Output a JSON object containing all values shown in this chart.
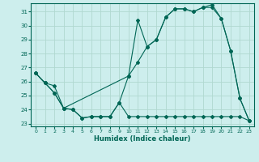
{
  "xlabel": "Humidex (Indice chaleur)",
  "bg_color": "#cdeeed",
  "grid_color": "#b0d8d0",
  "line_color": "#006655",
  "ylim": [
    22.8,
    31.6
  ],
  "xlim": [
    -0.5,
    23.5
  ],
  "yticks": [
    23,
    24,
    25,
    26,
    27,
    28,
    29,
    30,
    31
  ],
  "xticks": [
    0,
    1,
    2,
    3,
    4,
    5,
    6,
    7,
    8,
    9,
    10,
    11,
    12,
    13,
    14,
    15,
    16,
    17,
    18,
    19,
    20,
    21,
    22,
    23
  ],
  "series1_x": [
    0,
    1,
    2,
    3,
    4,
    5,
    6,
    7,
    8,
    9,
    10,
    11,
    12,
    13,
    14,
    15,
    16,
    17,
    18,
    19,
    20,
    21,
    22,
    23
  ],
  "series1_y": [
    26.6,
    25.9,
    25.7,
    24.1,
    24.0,
    23.4,
    23.5,
    23.5,
    23.5,
    24.5,
    23.5,
    23.5,
    23.5,
    23.5,
    23.5,
    23.5,
    23.5,
    23.5,
    23.5,
    23.5,
    23.5,
    23.5,
    23.5,
    23.2
  ],
  "series2_x": [
    0,
    1,
    2,
    3,
    10,
    11,
    12,
    13,
    14,
    15,
    16,
    17,
    18,
    19,
    20,
    21,
    22,
    23
  ],
  "series2_y": [
    26.6,
    25.9,
    25.2,
    24.1,
    26.4,
    30.4,
    28.5,
    29.0,
    30.6,
    31.2,
    31.2,
    31.0,
    31.3,
    31.3,
    30.5,
    28.2,
    24.8,
    23.2
  ],
  "series3_x": [
    0,
    1,
    2,
    3,
    4,
    5,
    6,
    7,
    8,
    9,
    10,
    11,
    12,
    13,
    14,
    15,
    16,
    17,
    18,
    19,
    20,
    21,
    22,
    23
  ],
  "series3_y": [
    26.6,
    25.9,
    25.2,
    24.1,
    24.0,
    23.4,
    23.5,
    23.5,
    23.5,
    24.5,
    26.4,
    27.4,
    28.5,
    29.0,
    30.6,
    31.2,
    31.2,
    31.0,
    31.3,
    31.5,
    30.5,
    28.2,
    24.8,
    23.2
  ]
}
